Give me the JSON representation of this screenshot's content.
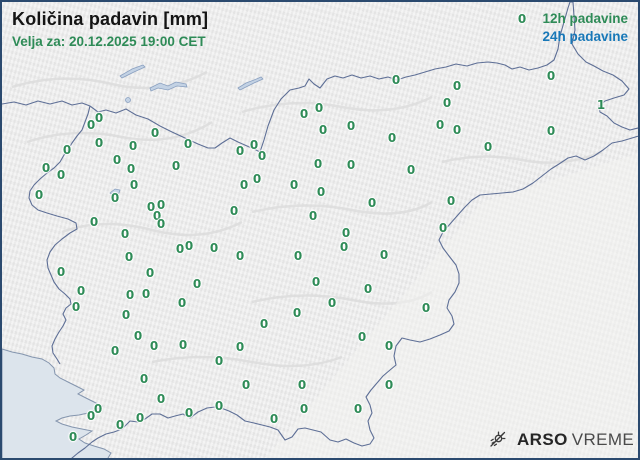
{
  "header": {
    "title": "Količina padavin [mm]",
    "subtitle": "Velja za: 20.12.2025 19:00 CET"
  },
  "legend": {
    "item_12h": "12h padavine",
    "item_24h": "24h padavine"
  },
  "brand": {
    "bold": "ARSO",
    "regular": "VREME",
    "icon": "sun-rain-icon"
  },
  "colors": {
    "value_green": "#2e8b57",
    "legend_blue": "#1878b8",
    "country_border": "#5e6f96",
    "sea": "#dce4ec",
    "frame": "#2b4a6f"
  },
  "map": {
    "region": "Slovenija",
    "unit": "mm",
    "stations_format": [
      "x",
      "y",
      "value"
    ],
    "stations": [
      [
        520,
        17,
        "0"
      ],
      [
        394,
        78,
        "0"
      ],
      [
        549,
        74,
        "0"
      ],
      [
        455,
        84,
        "0"
      ],
      [
        317,
        106,
        "0"
      ],
      [
        302,
        112,
        "0"
      ],
      [
        97,
        116,
        "0"
      ],
      [
        89,
        123,
        "0"
      ],
      [
        445,
        101,
        "0"
      ],
      [
        599,
        103,
        "1"
      ],
      [
        321,
        128,
        "0"
      ],
      [
        349,
        124,
        "0"
      ],
      [
        390,
        136,
        "0"
      ],
      [
        153,
        131,
        "0"
      ],
      [
        186,
        142,
        "0"
      ],
      [
        97,
        141,
        "0"
      ],
      [
        131,
        144,
        "0"
      ],
      [
        65,
        148,
        "0"
      ],
      [
        252,
        143,
        "0"
      ],
      [
        238,
        149,
        "0"
      ],
      [
        260,
        154,
        "0"
      ],
      [
        115,
        158,
        "0"
      ],
      [
        174,
        164,
        "0"
      ],
      [
        129,
        167,
        "0"
      ],
      [
        44,
        166,
        "0"
      ],
      [
        59,
        173,
        "0"
      ],
      [
        316,
        162,
        "0"
      ],
      [
        349,
        163,
        "0"
      ],
      [
        409,
        168,
        "0"
      ],
      [
        438,
        123,
        "0"
      ],
      [
        455,
        128,
        "0"
      ],
      [
        549,
        129,
        "0"
      ],
      [
        486,
        145,
        "0"
      ],
      [
        255,
        177,
        "0"
      ],
      [
        242,
        183,
        "0"
      ],
      [
        292,
        183,
        "0"
      ],
      [
        132,
        183,
        "0"
      ],
      [
        319,
        190,
        "0"
      ],
      [
        37,
        193,
        "0"
      ],
      [
        113,
        196,
        "0"
      ],
      [
        449,
        199,
        "0"
      ],
      [
        370,
        201,
        "0"
      ],
      [
        159,
        203,
        "0"
      ],
      [
        149,
        205,
        "0"
      ],
      [
        232,
        209,
        "0"
      ],
      [
        311,
        214,
        "0"
      ],
      [
        155,
        214,
        "0"
      ],
      [
        159,
        222,
        "0"
      ],
      [
        92,
        220,
        "0"
      ],
      [
        441,
        226,
        "0"
      ],
      [
        123,
        232,
        "0"
      ],
      [
        344,
        231,
        "0"
      ],
      [
        342,
        245,
        "0"
      ],
      [
        187,
        244,
        "0"
      ],
      [
        178,
        247,
        "0"
      ],
      [
        212,
        246,
        "0"
      ],
      [
        238,
        254,
        "0"
      ],
      [
        296,
        254,
        "0"
      ],
      [
        382,
        253,
        "0"
      ],
      [
        127,
        255,
        "0"
      ],
      [
        59,
        270,
        "0"
      ],
      [
        148,
        271,
        "0"
      ],
      [
        195,
        282,
        "0"
      ],
      [
        79,
        289,
        "0"
      ],
      [
        128,
        293,
        "0"
      ],
      [
        144,
        292,
        "0"
      ],
      [
        314,
        280,
        "0"
      ],
      [
        366,
        287,
        "0"
      ],
      [
        330,
        301,
        "0"
      ],
      [
        180,
        301,
        "0"
      ],
      [
        74,
        305,
        "0"
      ],
      [
        295,
        311,
        "0"
      ],
      [
        424,
        306,
        "0"
      ],
      [
        124,
        313,
        "0"
      ],
      [
        262,
        322,
        "0"
      ],
      [
        136,
        334,
        "0"
      ],
      [
        152,
        344,
        "0"
      ],
      [
        181,
        343,
        "0"
      ],
      [
        113,
        349,
        "0"
      ],
      [
        360,
        335,
        "0"
      ],
      [
        238,
        345,
        "0"
      ],
      [
        387,
        344,
        "0"
      ],
      [
        217,
        359,
        "0"
      ],
      [
        142,
        377,
        "0"
      ],
      [
        244,
        383,
        "0"
      ],
      [
        300,
        383,
        "0"
      ],
      [
        387,
        383,
        "0"
      ],
      [
        159,
        397,
        "0"
      ],
      [
        96,
        407,
        "0"
      ],
      [
        89,
        414,
        "0"
      ],
      [
        187,
        411,
        "0"
      ],
      [
        217,
        404,
        "0"
      ],
      [
        302,
        407,
        "0"
      ],
      [
        356,
        407,
        "0"
      ],
      [
        272,
        417,
        "0"
      ],
      [
        118,
        423,
        "0"
      ],
      [
        138,
        416,
        "0"
      ],
      [
        71,
        435,
        "0"
      ]
    ]
  }
}
